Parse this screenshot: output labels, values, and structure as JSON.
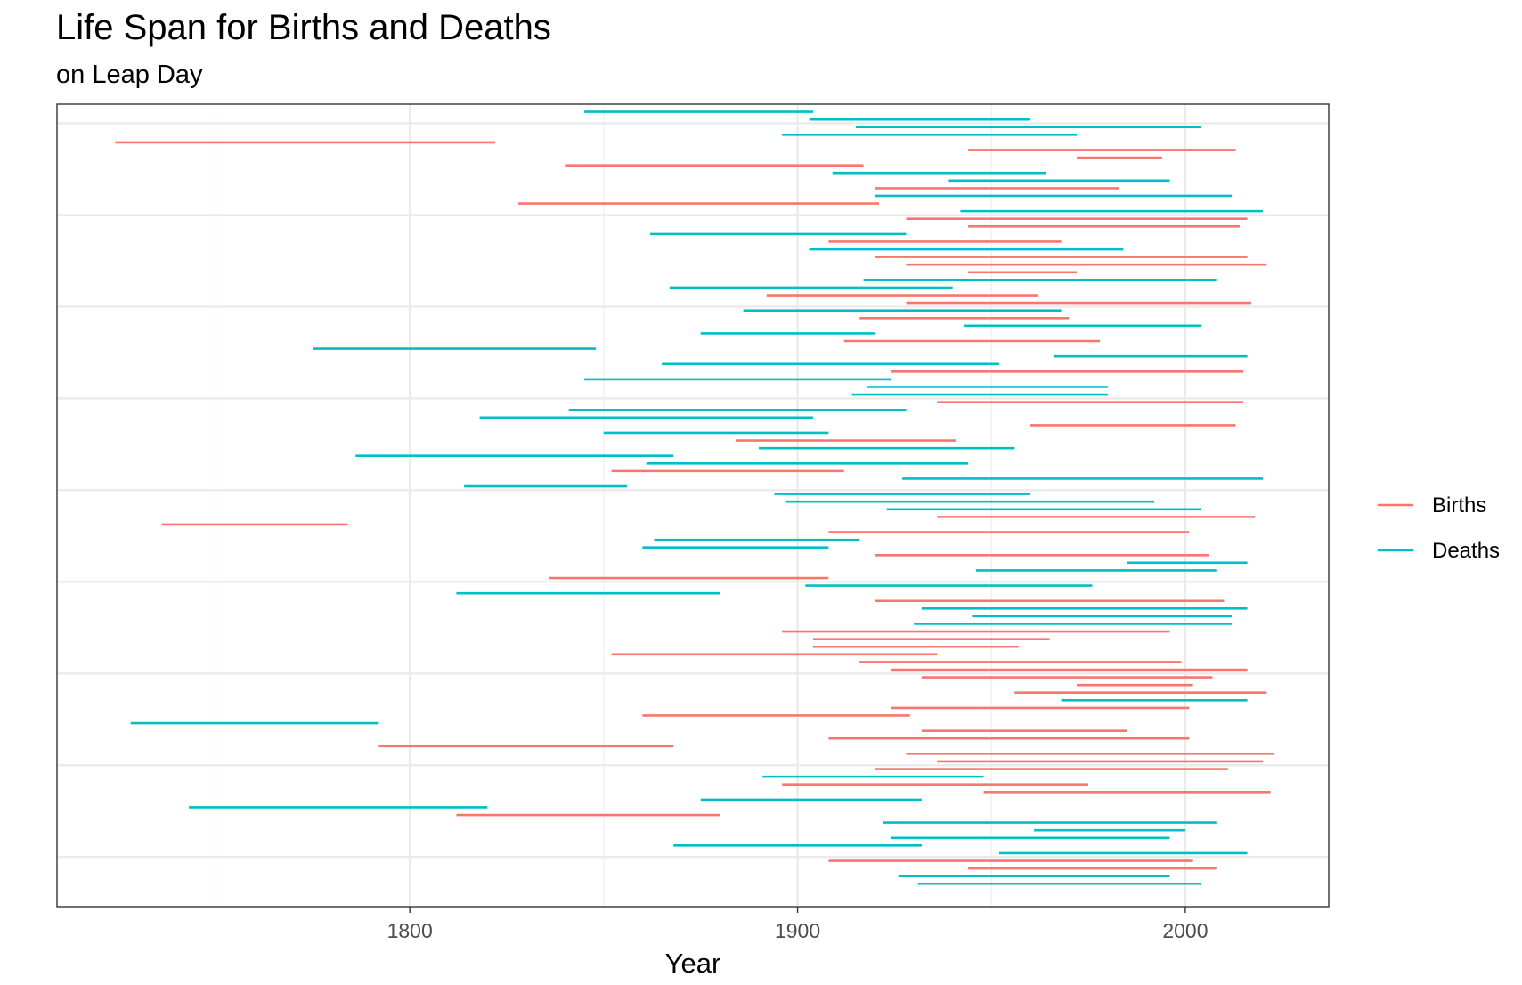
{
  "chart_data": {
    "type": "segment",
    "title": "Life Span for Births and Deaths",
    "subtitle": "on Leap Day",
    "xlabel": "Year",
    "ylabel": "",
    "xlim": [
      1709,
      2037
    ],
    "ylim": [
      0.5,
      105.5
    ],
    "x_ticks": [
      1800,
      1900,
      2000
    ],
    "x_minor_ticks": [
      1750,
      1850,
      1950
    ],
    "y_ticks": [
      7,
      19,
      31,
      43,
      55,
      67,
      79,
      91,
      103
    ],
    "grid": true,
    "legend": {
      "position": "right"
    },
    "series": [
      {
        "name": "Births",
        "color": "#F8766D"
      },
      {
        "name": "Deaths",
        "color": "#00BFC4"
      }
    ],
    "segments": [
      {
        "start": 1845,
        "end": 1904,
        "y": 104.5,
        "series": "Deaths"
      },
      {
        "start": 1903,
        "end": 1960,
        "y": 103.5,
        "series": "Deaths"
      },
      {
        "start": 1915,
        "end": 2004,
        "y": 102.5,
        "series": "Deaths"
      },
      {
        "start": 1896,
        "end": 1972,
        "y": 101.5,
        "series": "Deaths"
      },
      {
        "start": 1724,
        "end": 1822,
        "y": 100.5,
        "series": "Births"
      },
      {
        "start": 1944,
        "end": 2013,
        "y": 99.5,
        "series": "Births"
      },
      {
        "start": 1972,
        "end": 1994,
        "y": 98.5,
        "series": "Births"
      },
      {
        "start": 1840,
        "end": 1917,
        "y": 97.5,
        "series": "Births"
      },
      {
        "start": 1909,
        "end": 1964,
        "y": 96.5,
        "series": "Deaths"
      },
      {
        "start": 1939,
        "end": 1996,
        "y": 95.5,
        "series": "Deaths"
      },
      {
        "start": 1920,
        "end": 1983,
        "y": 94.5,
        "series": "Births"
      },
      {
        "start": 1920,
        "end": 2012,
        "y": 93.5,
        "series": "Deaths"
      },
      {
        "start": 1828,
        "end": 1921,
        "y": 92.5,
        "series": "Births"
      },
      {
        "start": 1942,
        "end": 2020,
        "y": 91.5,
        "series": "Deaths"
      },
      {
        "start": 1928,
        "end": 2016,
        "y": 90.5,
        "series": "Births"
      },
      {
        "start": 1944,
        "end": 2014,
        "y": 89.5,
        "series": "Births"
      },
      {
        "start": 1862,
        "end": 1928,
        "y": 88.5,
        "series": "Deaths"
      },
      {
        "start": 1908,
        "end": 1968,
        "y": 87.5,
        "series": "Births"
      },
      {
        "start": 1903,
        "end": 1984,
        "y": 86.5,
        "series": "Deaths"
      },
      {
        "start": 1920,
        "end": 2016,
        "y": 85.5,
        "series": "Births"
      },
      {
        "start": 1928,
        "end": 2021,
        "y": 84.5,
        "series": "Births"
      },
      {
        "start": 1944,
        "end": 1972,
        "y": 83.5,
        "series": "Births"
      },
      {
        "start": 1917,
        "end": 2008,
        "y": 82.5,
        "series": "Deaths"
      },
      {
        "start": 1867,
        "end": 1940,
        "y": 81.5,
        "series": "Deaths"
      },
      {
        "start": 1892,
        "end": 1962,
        "y": 80.5,
        "series": "Births"
      },
      {
        "start": 1928,
        "end": 2017,
        "y": 79.5,
        "series": "Births"
      },
      {
        "start": 1886,
        "end": 1968,
        "y": 78.5,
        "series": "Deaths"
      },
      {
        "start": 1916,
        "end": 1970,
        "y": 77.5,
        "series": "Births"
      },
      {
        "start": 1943,
        "end": 2004,
        "y": 76.5,
        "series": "Deaths"
      },
      {
        "start": 1875,
        "end": 1920,
        "y": 75.5,
        "series": "Deaths"
      },
      {
        "start": 1912,
        "end": 1978,
        "y": 74.5,
        "series": "Births"
      },
      {
        "start": 1775,
        "end": 1848,
        "y": 73.5,
        "series": "Deaths"
      },
      {
        "start": 1966,
        "end": 2016,
        "y": 72.5,
        "series": "Deaths"
      },
      {
        "start": 1865,
        "end": 1952,
        "y": 71.5,
        "series": "Deaths"
      },
      {
        "start": 1924,
        "end": 2015,
        "y": 70.5,
        "series": "Births"
      },
      {
        "start": 1845,
        "end": 1924,
        "y": 69.5,
        "series": "Deaths"
      },
      {
        "start": 1918,
        "end": 1980,
        "y": 68.5,
        "series": "Deaths"
      },
      {
        "start": 1914,
        "end": 1980,
        "y": 67.5,
        "series": "Deaths"
      },
      {
        "start": 1936,
        "end": 2015,
        "y": 66.5,
        "series": "Births"
      },
      {
        "start": 1841,
        "end": 1928,
        "y": 65.5,
        "series": "Deaths"
      },
      {
        "start": 1818,
        "end": 1904,
        "y": 64.5,
        "series": "Deaths"
      },
      {
        "start": 1960,
        "end": 2013,
        "y": 63.5,
        "series": "Births"
      },
      {
        "start": 1850,
        "end": 1908,
        "y": 62.5,
        "series": "Deaths"
      },
      {
        "start": 1884,
        "end": 1941,
        "y": 61.5,
        "series": "Births"
      },
      {
        "start": 1890,
        "end": 1956,
        "y": 60.5,
        "series": "Deaths"
      },
      {
        "start": 1786,
        "end": 1868,
        "y": 59.5,
        "series": "Deaths"
      },
      {
        "start": 1861,
        "end": 1944,
        "y": 58.5,
        "series": "Deaths"
      },
      {
        "start": 1852,
        "end": 1912,
        "y": 57.5,
        "series": "Births"
      },
      {
        "start": 1927,
        "end": 2020,
        "y": 56.5,
        "series": "Deaths"
      },
      {
        "start": 1814,
        "end": 1856,
        "y": 55.5,
        "series": "Deaths"
      },
      {
        "start": 1894,
        "end": 1960,
        "y": 54.5,
        "series": "Deaths"
      },
      {
        "start": 1897,
        "end": 1992,
        "y": 53.5,
        "series": "Deaths"
      },
      {
        "start": 1923,
        "end": 2004,
        "y": 52.5,
        "series": "Deaths"
      },
      {
        "start": 1936,
        "end": 2018,
        "y": 51.5,
        "series": "Births"
      },
      {
        "start": 1736,
        "end": 1784,
        "y": 50.5,
        "series": "Births"
      },
      {
        "start": 1908,
        "end": 2001,
        "y": 49.5,
        "series": "Births"
      },
      {
        "start": 1863,
        "end": 1916,
        "y": 48.5,
        "series": "Deaths"
      },
      {
        "start": 1860,
        "end": 1908,
        "y": 47.5,
        "series": "Deaths"
      },
      {
        "start": 1920,
        "end": 2006,
        "y": 46.5,
        "series": "Births"
      },
      {
        "start": 1985,
        "end": 2016,
        "y": 45.5,
        "series": "Deaths"
      },
      {
        "start": 1946,
        "end": 2008,
        "y": 44.5,
        "series": "Deaths"
      },
      {
        "start": 1836,
        "end": 1908,
        "y": 43.5,
        "series": "Births"
      },
      {
        "start": 1902,
        "end": 1976,
        "y": 42.5,
        "series": "Deaths"
      },
      {
        "start": 1812,
        "end": 1880,
        "y": 41.5,
        "series": "Deaths"
      },
      {
        "start": 1920,
        "end": 2010,
        "y": 40.5,
        "series": "Births"
      },
      {
        "start": 1932,
        "end": 2016,
        "y": 39.5,
        "series": "Deaths"
      },
      {
        "start": 1945,
        "end": 2012,
        "y": 38.5,
        "series": "Deaths"
      },
      {
        "start": 1930,
        "end": 2012,
        "y": 37.5,
        "series": "Deaths"
      },
      {
        "start": 1896,
        "end": 1996,
        "y": 36.5,
        "series": "Births"
      },
      {
        "start": 1904,
        "end": 1965,
        "y": 35.5,
        "series": "Births"
      },
      {
        "start": 1904,
        "end": 1957,
        "y": 34.5,
        "series": "Births"
      },
      {
        "start": 1852,
        "end": 1936,
        "y": 33.5,
        "series": "Births"
      },
      {
        "start": 1916,
        "end": 1999,
        "y": 32.5,
        "series": "Births"
      },
      {
        "start": 1924,
        "end": 2016,
        "y": 31.5,
        "series": "Births"
      },
      {
        "start": 1932,
        "end": 2007,
        "y": 30.5,
        "series": "Births"
      },
      {
        "start": 1972,
        "end": 2002,
        "y": 29.5,
        "series": "Births"
      },
      {
        "start": 1956,
        "end": 2021,
        "y": 28.5,
        "series": "Births"
      },
      {
        "start": 1968,
        "end": 2016,
        "y": 27.5,
        "series": "Deaths"
      },
      {
        "start": 1924,
        "end": 2001,
        "y": 26.5,
        "series": "Births"
      },
      {
        "start": 1860,
        "end": 1929,
        "y": 25.5,
        "series": "Births"
      },
      {
        "start": 1728,
        "end": 1792,
        "y": 24.5,
        "series": "Deaths"
      },
      {
        "start": 1932,
        "end": 1985,
        "y": 23.5,
        "series": "Births"
      },
      {
        "start": 1908,
        "end": 2001,
        "y": 22.5,
        "series": "Births"
      },
      {
        "start": 1792,
        "end": 1868,
        "y": 21.5,
        "series": "Births"
      },
      {
        "start": 1928,
        "end": 2023,
        "y": 20.5,
        "series": "Births"
      },
      {
        "start": 1936,
        "end": 2020,
        "y": 19.5,
        "series": "Births"
      },
      {
        "start": 1920,
        "end": 2011,
        "y": 18.5,
        "series": "Births"
      },
      {
        "start": 1891,
        "end": 1948,
        "y": 17.5,
        "series": "Deaths"
      },
      {
        "start": 1896,
        "end": 1975,
        "y": 16.5,
        "series": "Births"
      },
      {
        "start": 1948,
        "end": 2022,
        "y": 15.5,
        "series": "Births"
      },
      {
        "start": 1875,
        "end": 1932,
        "y": 14.5,
        "series": "Deaths"
      },
      {
        "start": 1743,
        "end": 1820,
        "y": 13.5,
        "series": "Deaths"
      },
      {
        "start": 1812,
        "end": 1880,
        "y": 12.5,
        "series": "Births"
      },
      {
        "start": 1922,
        "end": 2008,
        "y": 11.5,
        "series": "Deaths"
      },
      {
        "start": 1961,
        "end": 2000,
        "y": 10.5,
        "series": "Deaths"
      },
      {
        "start": 1924,
        "end": 1996,
        "y": 9.5,
        "series": "Deaths"
      },
      {
        "start": 1868,
        "end": 1932,
        "y": 8.5,
        "series": "Deaths"
      },
      {
        "start": 1952,
        "end": 2016,
        "y": 7.5,
        "series": "Deaths"
      },
      {
        "start": 1908,
        "end": 2002,
        "y": 6.5,
        "series": "Births"
      },
      {
        "start": 1944,
        "end": 2008,
        "y": 5.5,
        "series": "Births"
      },
      {
        "start": 1926,
        "end": 1996,
        "y": 4.5,
        "series": "Deaths"
      },
      {
        "start": 1931,
        "end": 2004,
        "y": 3.5,
        "series": "Deaths"
      }
    ]
  }
}
